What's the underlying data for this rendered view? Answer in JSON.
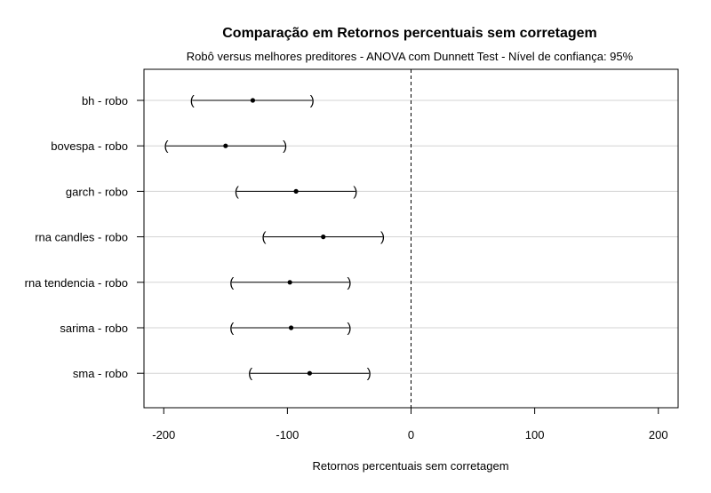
{
  "chart_data": {
    "type": "scatter",
    "style": "confidence-interval",
    "title": "Comparação em Retornos percentuais sem corretagem",
    "subtitle": "Robô versus melhores preditores - ANOVA com Dunnett Test - Nível de confiança: 95%",
    "xlabel": "Retornos percentuais sem corretagem",
    "ylabel": "",
    "xlim": [
      -216,
      216
    ],
    "xticks": [
      -200,
      -100,
      0,
      100,
      200
    ],
    "xtick_labels": [
      "-200",
      "-100",
      "0",
      "100",
      "200"
    ],
    "reference_line": 0,
    "grid": "horizontal",
    "comparisons": [
      {
        "label": "bh - robo",
        "estimate": -128,
        "lower": -177,
        "upper": -80
      },
      {
        "label": "bovespa - robo",
        "estimate": -150,
        "lower": -198,
        "upper": -102
      },
      {
        "label": "garch - robo",
        "estimate": -93,
        "lower": -141,
        "upper": -45
      },
      {
        "label": "rna candles - robo",
        "estimate": -71,
        "lower": -119,
        "upper": -23
      },
      {
        "label": "rna tendencia - robo",
        "estimate": -98,
        "lower": -145,
        "upper": -50
      },
      {
        "label": "sarima - robo",
        "estimate": -97,
        "lower": -145,
        "upper": -50
      },
      {
        "label": "sma - robo",
        "estimate": -82,
        "lower": -130,
        "upper": -34
      }
    ],
    "colors": {
      "axis": "#000000",
      "gridline": "#d3d3d3",
      "interval": "#000000",
      "point": "#000000"
    }
  }
}
